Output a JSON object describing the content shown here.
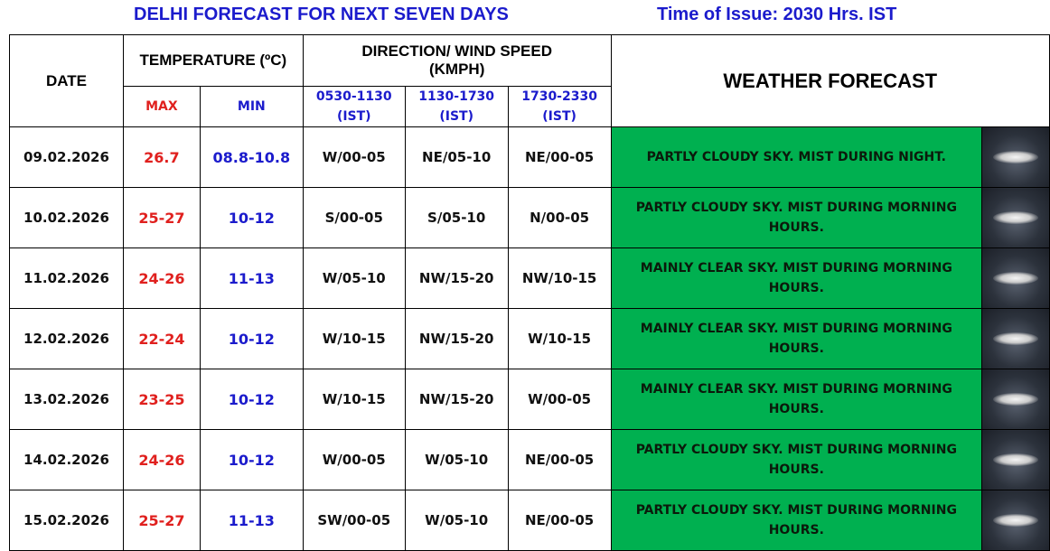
{
  "title": "DELHI FORECAST FOR NEXT SEVEN DAYS",
  "issue_time": "Time of Issue: 2030 Hrs. IST",
  "headers": {
    "date": "DATE",
    "temperature": "TEMPERATURE (ºC)",
    "max": "MAX",
    "min": "MIN",
    "wind": "DIRECTION/ WIND SPEED (KMPH)",
    "slots": [
      "0530-1130 (IST)",
      "1130-1730 (IST)",
      "1730-2330 (IST)"
    ],
    "forecast": "WEATHER FORECAST"
  },
  "colors": {
    "forecast_bg": "#00b050",
    "max": "#e0201e",
    "min": "#1b1bcc"
  },
  "rows": [
    {
      "date": "09.02.2026",
      "max": "26.7",
      "min": "08.8-10.8",
      "w1": "W/00-05",
      "w2": "NE/05-10",
      "w3": "NE/00-05",
      "forecast": "PARTLY CLOUDY SKY. MIST DURING NIGHT.",
      "icon": "night-cloud-icon"
    },
    {
      "date": "10.02.2026",
      "max": "25-27",
      "min": "10-12",
      "w1": "S/00-05",
      "w2": "S/05-10",
      "w3": "N/00-05",
      "forecast": "PARTLY CLOUDY SKY. MIST DURING MORNING HOURS.",
      "icon": "night-cloud-icon"
    },
    {
      "date": "11.02.2026",
      "max": "24-26",
      "min": "11-13",
      "w1": "W/05-10",
      "w2": "NW/15-20",
      "w3": "NW/10-15",
      "forecast": "MAINLY CLEAR SKY. MIST DURING MORNING HOURS.",
      "icon": "night-cloud-icon"
    },
    {
      "date": "12.02.2026",
      "max": "22-24",
      "min": "10-12",
      "w1": "W/10-15",
      "w2": "NW/15-20",
      "w3": "W/10-15",
      "forecast": "MAINLY CLEAR SKY. MIST DURING MORNING HOURS.",
      "icon": "night-cloud-icon"
    },
    {
      "date": "13.02.2026",
      "max": "23-25",
      "min": "10-12",
      "w1": "W/10-15",
      "w2": "NW/15-20",
      "w3": "W/00-05",
      "forecast": "MAINLY CLEAR SKY. MIST DURING MORNING HOURS.",
      "icon": "night-cloud-icon"
    },
    {
      "date": "14.02.2026",
      "max": "24-26",
      "min": "10-12",
      "w1": "W/00-05",
      "w2": "W/05-10",
      "w3": "NE/00-05",
      "forecast": "PARTLY CLOUDY SKY. MIST DURING MORNING HOURS.",
      "icon": "night-cloud-icon"
    },
    {
      "date": "15.02.2026",
      "max": "25-27",
      "min": "11-13",
      "w1": "SW/00-05",
      "w2": "W/05-10",
      "w3": "NE/00-05",
      "forecast": "PARTLY CLOUDY SKY. MIST DURING MORNING HOURS.",
      "icon": "night-cloud-icon"
    }
  ]
}
